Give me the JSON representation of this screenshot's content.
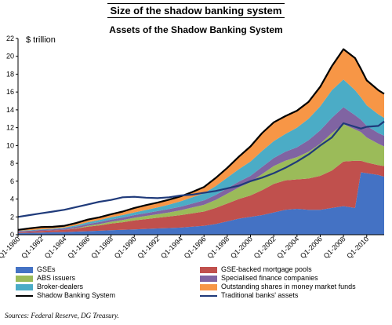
{
  "chart_data": {
    "type": "area",
    "title": "Size of the shadow banking system",
    "subtitle": "Assets of the Shadow Banking System",
    "ylabel": "$ trillion",
    "ylim": [
      0,
      22
    ],
    "y_ticks": [
      "0",
      "2",
      "4",
      "6",
      "8",
      "10",
      "12",
      "14",
      "16",
      "18",
      "20",
      "22"
    ],
    "x_labels": [
      "Q1-1980",
      "Q1-1982",
      "Q1-1984",
      "Q1-1986",
      "Q1-1988",
      "Q1-1990",
      "Q1-1992",
      "Q1-1994",
      "Q1-1996",
      "Q1-1998",
      "Q1-2000",
      "Q1-2002",
      "Q1-2004",
      "Q1-2006",
      "Q1-2008",
      "Q1-2010"
    ],
    "x": [
      1980,
      1981,
      1982,
      1983,
      1984,
      1985,
      1986,
      1987,
      1988,
      1989,
      1990,
      1991,
      1992,
      1993,
      1994,
      1995,
      1996,
      1997,
      1998,
      1999,
      2000,
      2001,
      2002,
      2003,
      2004,
      2005,
      2006,
      2007,
      2008,
      2009,
      2009.5,
      2010,
      2011,
      2011.5
    ],
    "stacked_series": [
      {
        "name": "GSEs",
        "color": "#4472c4",
        "values": [
          0.2,
          0.22,
          0.25,
          0.28,
          0.3,
          0.35,
          0.4,
          0.45,
          0.5,
          0.55,
          0.6,
          0.65,
          0.7,
          0.75,
          0.8,
          0.9,
          1.0,
          1.2,
          1.5,
          1.8,
          2.0,
          2.2,
          2.5,
          2.8,
          2.9,
          2.8,
          2.8,
          3.0,
          3.2,
          3.0,
          7.0,
          6.9,
          6.7,
          6.5
        ]
      },
      {
        "name": "GSE-backed mortgage pools",
        "color": "#c0504d",
        "values": [
          0.1,
          0.13,
          0.17,
          0.2,
          0.25,
          0.33,
          0.5,
          0.6,
          0.75,
          0.85,
          1.0,
          1.1,
          1.2,
          1.3,
          1.4,
          1.5,
          1.6,
          1.8,
          2.0,
          2.2,
          2.4,
          2.8,
          3.2,
          3.3,
          3.3,
          3.5,
          3.8,
          4.2,
          5.0,
          5.3,
          1.3,
          1.2,
          1.1,
          1.2
        ]
      },
      {
        "name": "ABS issuers",
        "color": "#9bbb59",
        "values": [
          0.0,
          0.0,
          0.0,
          0.0,
          0.0,
          0.05,
          0.1,
          0.15,
          0.2,
          0.25,
          0.3,
          0.35,
          0.4,
          0.45,
          0.55,
          0.65,
          0.75,
          0.9,
          1.1,
          1.3,
          1.5,
          1.8,
          2.0,
          2.2,
          2.5,
          3.0,
          3.6,
          4.2,
          4.2,
          3.5,
          3.2,
          2.8,
          2.4,
          2.2
        ]
      },
      {
        "name": "Specialised finance companies",
        "color": "#8064a2",
        "values": [
          0.1,
          0.1,
          0.12,
          0.13,
          0.15,
          0.18,
          0.2,
          0.22,
          0.25,
          0.28,
          0.3,
          0.32,
          0.35,
          0.38,
          0.4,
          0.45,
          0.5,
          0.55,
          0.6,
          0.65,
          0.7,
          0.8,
          0.9,
          1.0,
          1.1,
          1.3,
          1.5,
          1.7,
          1.9,
          1.6,
          1.4,
          1.3,
          1.2,
          1.2
        ]
      },
      {
        "name": "Broker-dealers",
        "color": "#4bacc6",
        "values": [
          0.05,
          0.06,
          0.07,
          0.08,
          0.1,
          0.15,
          0.2,
          0.23,
          0.25,
          0.27,
          0.3,
          0.35,
          0.4,
          0.5,
          0.6,
          0.7,
          0.8,
          1.0,
          1.2,
          1.4,
          1.6,
          1.8,
          1.9,
          2.0,
          2.2,
          2.4,
          2.7,
          3.1,
          3.1,
          2.8,
          2.5,
          2.3,
          2.1,
          2.0
        ]
      },
      {
        "name": "Outstanding shares in money market funds",
        "color": "#f79646",
        "values": [
          0.1,
          0.2,
          0.25,
          0.2,
          0.2,
          0.25,
          0.3,
          0.3,
          0.35,
          0.4,
          0.5,
          0.55,
          0.55,
          0.55,
          0.55,
          0.6,
          0.7,
          0.9,
          1.1,
          1.4,
          1.7,
          2.0,
          2.1,
          2.0,
          1.9,
          1.9,
          2.2,
          2.7,
          3.4,
          3.6,
          3.2,
          2.8,
          2.7,
          2.7
        ]
      }
    ],
    "line_series": [
      {
        "name": "Shadow Banking System",
        "color": "#000000",
        "values": [
          0.55,
          0.71,
          0.86,
          0.89,
          1.0,
          1.31,
          1.7,
          1.95,
          2.3,
          2.6,
          3.0,
          3.32,
          3.6,
          3.93,
          4.3,
          4.8,
          5.35,
          6.35,
          7.5,
          8.75,
          9.9,
          11.4,
          12.6,
          13.3,
          13.9,
          14.9,
          16.6,
          18.9,
          20.8,
          19.8,
          18.6,
          17.3,
          16.2,
          15.8
        ]
      },
      {
        "name": "Traditional banks' assets",
        "color": "#1f3a7a",
        "values": [
          2.0,
          2.2,
          2.4,
          2.6,
          2.8,
          3.1,
          3.4,
          3.7,
          3.9,
          4.2,
          4.25,
          4.15,
          4.1,
          4.2,
          4.4,
          4.5,
          4.7,
          4.9,
          5.2,
          5.5,
          6.0,
          6.4,
          6.9,
          7.5,
          8.2,
          9.0,
          10.0,
          10.9,
          12.5,
          12.1,
          11.9,
          12.1,
          12.2,
          12.7
        ]
      }
    ],
    "legend_position": "bottom",
    "grid": false
  },
  "legend": [
    {
      "label": "GSEs",
      "kind": "box",
      "color": "#4472c4"
    },
    {
      "label": "GSE-backed mortgage pools",
      "kind": "box",
      "color": "#c0504d"
    },
    {
      "label": "ABS issuers",
      "kind": "box",
      "color": "#9bbb59"
    },
    {
      "label": "Specialised finance companies",
      "kind": "box",
      "color": "#8064a2"
    },
    {
      "label": "Broker-dealers",
      "kind": "box",
      "color": "#4bacc6"
    },
    {
      "label": "Outstanding shares in money market funds",
      "kind": "box",
      "color": "#f79646"
    },
    {
      "label": "Shadow Banking System",
      "kind": "line",
      "color": "#000000"
    },
    {
      "label": "Traditional banks' assets",
      "kind": "line",
      "color": "#1f3a7a"
    }
  ],
  "source": "Sources: Federal Reserve, DG Treasury."
}
